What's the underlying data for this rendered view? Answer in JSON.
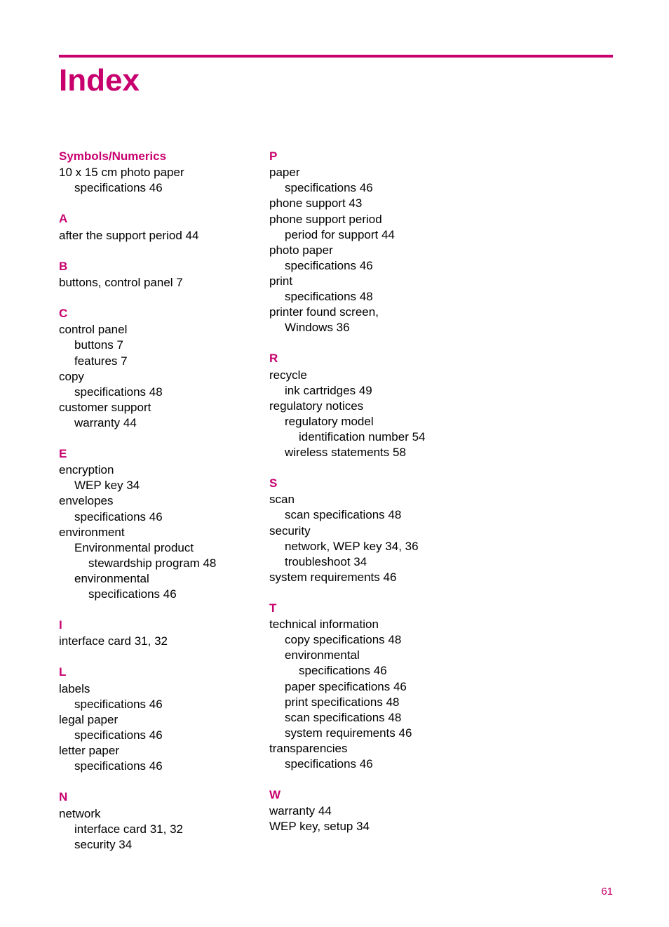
{
  "title": "Index",
  "page_number": "61",
  "colors": {
    "accent": "#c8006e",
    "text": "#000000",
    "background": "#ffffff"
  },
  "column1": {
    "sections": [
      {
        "head": "Symbols/Numerics",
        "entries": [
          {
            "text": "10 x 15 cm photo paper",
            "level": 1
          },
          {
            "text": "specifications 46",
            "level": 2
          }
        ]
      },
      {
        "head": "A",
        "entries": [
          {
            "text": "after the support period 44",
            "level": 1
          }
        ]
      },
      {
        "head": "B",
        "entries": [
          {
            "text": "buttons, control panel 7",
            "level": 1
          }
        ]
      },
      {
        "head": "C",
        "entries": [
          {
            "text": "control panel",
            "level": 1
          },
          {
            "text": "buttons 7",
            "level": 2
          },
          {
            "text": "features 7",
            "level": 2
          },
          {
            "text": "copy",
            "level": 1
          },
          {
            "text": "specifications 48",
            "level": 2
          },
          {
            "text": "customer support",
            "level": 1
          },
          {
            "text": "warranty 44",
            "level": 2
          }
        ]
      },
      {
        "head": "E",
        "entries": [
          {
            "text": "encryption",
            "level": 1
          },
          {
            "text": "WEP key 34",
            "level": 2
          },
          {
            "text": "envelopes",
            "level": 1
          },
          {
            "text": "specifications 46",
            "level": 2
          },
          {
            "text": "environment",
            "level": 1
          },
          {
            "text": "Environmental product",
            "level": 2
          },
          {
            "text": "stewardship program 48",
            "level": 3
          },
          {
            "text": "environmental",
            "level": 2
          },
          {
            "text": "specifications 46",
            "level": 3
          }
        ]
      },
      {
        "head": "I",
        "entries": [
          {
            "text": "interface card 31, 32",
            "level": 1
          }
        ]
      },
      {
        "head": "L",
        "entries": [
          {
            "text": "labels",
            "level": 1
          },
          {
            "text": "specifications 46",
            "level": 2
          },
          {
            "text": "legal paper",
            "level": 1
          },
          {
            "text": "specifications 46",
            "level": 2
          },
          {
            "text": "letter paper",
            "level": 1
          },
          {
            "text": "specifications 46",
            "level": 2
          }
        ]
      },
      {
        "head": "N",
        "entries": [
          {
            "text": "network",
            "level": 1
          },
          {
            "text": "interface card 31, 32",
            "level": 2
          },
          {
            "text": "security 34",
            "level": 2
          }
        ]
      }
    ]
  },
  "column2": {
    "sections": [
      {
        "head": "P",
        "entries": [
          {
            "text": "paper",
            "level": 1
          },
          {
            "text": "specifications 46",
            "level": 2
          },
          {
            "text": "phone support 43",
            "level": 1
          },
          {
            "text": "phone support period",
            "level": 1
          },
          {
            "text": "period for support 44",
            "level": 2
          },
          {
            "text": "photo paper",
            "level": 1
          },
          {
            "text": "specifications 46",
            "level": 2
          },
          {
            "text": "print",
            "level": 1
          },
          {
            "text": "specifications 48",
            "level": 2
          },
          {
            "text": "printer found screen,",
            "level": 1
          },
          {
            "text": "Windows 36",
            "level": 2
          }
        ]
      },
      {
        "head": "R",
        "entries": [
          {
            "text": "recycle",
            "level": 1
          },
          {
            "text": "ink cartridges 49",
            "level": 2
          },
          {
            "text": "regulatory notices",
            "level": 1
          },
          {
            "text": "regulatory model",
            "level": 2
          },
          {
            "text": "identification number 54",
            "level": 3
          },
          {
            "text": "wireless statements 58",
            "level": 2
          }
        ]
      },
      {
        "head": "S",
        "entries": [
          {
            "text": "scan",
            "level": 1
          },
          {
            "text": "scan specifications 48",
            "level": 2
          },
          {
            "text": "security",
            "level": 1
          },
          {
            "text": "network, WEP key 34, 36",
            "level": 2
          },
          {
            "text": "troubleshoot 34",
            "level": 2
          },
          {
            "text": "system requirements 46",
            "level": 1
          }
        ]
      },
      {
        "head": "T",
        "entries": [
          {
            "text": "technical information",
            "level": 1
          },
          {
            "text": "copy specifications 48",
            "level": 2
          },
          {
            "text": "environmental",
            "level": 2
          },
          {
            "text": "specifications 46",
            "level": 3
          },
          {
            "text": "paper specifications 46",
            "level": 2
          },
          {
            "text": "print specifications 48",
            "level": 2
          },
          {
            "text": "scan specifications 48",
            "level": 2
          },
          {
            "text": "system requirements 46",
            "level": 2
          },
          {
            "text": "transparencies",
            "level": 1
          },
          {
            "text": "specifications 46",
            "level": 2
          }
        ]
      },
      {
        "head": "W",
        "entries": [
          {
            "text": "warranty 44",
            "level": 1
          },
          {
            "text": "WEP key, setup 34",
            "level": 1
          }
        ]
      }
    ]
  }
}
